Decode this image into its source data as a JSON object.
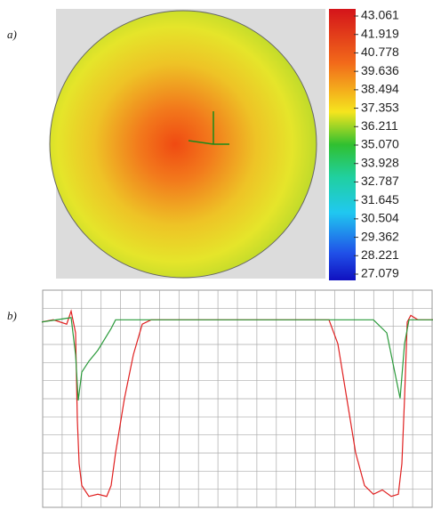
{
  "chart_data": [
    {
      "type": "heatmap",
      "panel_label": "a)",
      "clim": [
        27.079,
        43.061
      ],
      "colorbar_ticks": [
        43.061,
        41.919,
        40.778,
        39.636,
        38.494,
        37.353,
        36.211,
        35.07,
        33.928,
        32.787,
        31.645,
        30.504,
        29.362,
        28.221,
        27.079
      ],
      "colorbar_labels": [
        "43.061",
        "41.919",
        "40.778",
        "39.636",
        "38.494",
        "37.353",
        "36.211",
        "35.070",
        "33.928",
        "32.787",
        "31.645",
        "30.504",
        "29.362",
        "28.221",
        "27.079"
      ]
    },
    {
      "type": "line",
      "panel_label": "b)",
      "xlim": [
        0,
        440
      ],
      "ylim": [
        0,
        100
      ],
      "grid": true,
      "series": [
        {
          "color": "#e02020",
          "x": [
            0,
            13,
            28,
            33,
            38,
            40,
            42,
            45,
            53,
            63,
            73,
            78,
            83,
            93,
            103,
            113,
            123,
            153,
            323,
            333,
            343,
            353,
            363,
            373,
            383,
            393,
            401,
            405,
            408,
            411,
            415,
            423,
            440
          ],
          "values": [
            85,
            86,
            84,
            90,
            80,
            40,
            20,
            10,
            5,
            6,
            5,
            10,
            25,
            50,
            70,
            84,
            86,
            86,
            86,
            75,
            50,
            25,
            10,
            6,
            8,
            5,
            6,
            20,
            50,
            85,
            88,
            86,
            86
          ]
        },
        {
          "color": "#2a9a3a",
          "x": [
            0,
            33,
            38,
            41,
            45,
            53,
            63,
            78,
            83,
            323,
            373,
            388,
            398,
            403,
            408,
            413,
            440
          ],
          "values": [
            85,
            87,
            70,
            49,
            62,
            67,
            72,
            82,
            86,
            86,
            86,
            80,
            60,
            50,
            75,
            86,
            86
          ]
        }
      ]
    }
  ]
}
